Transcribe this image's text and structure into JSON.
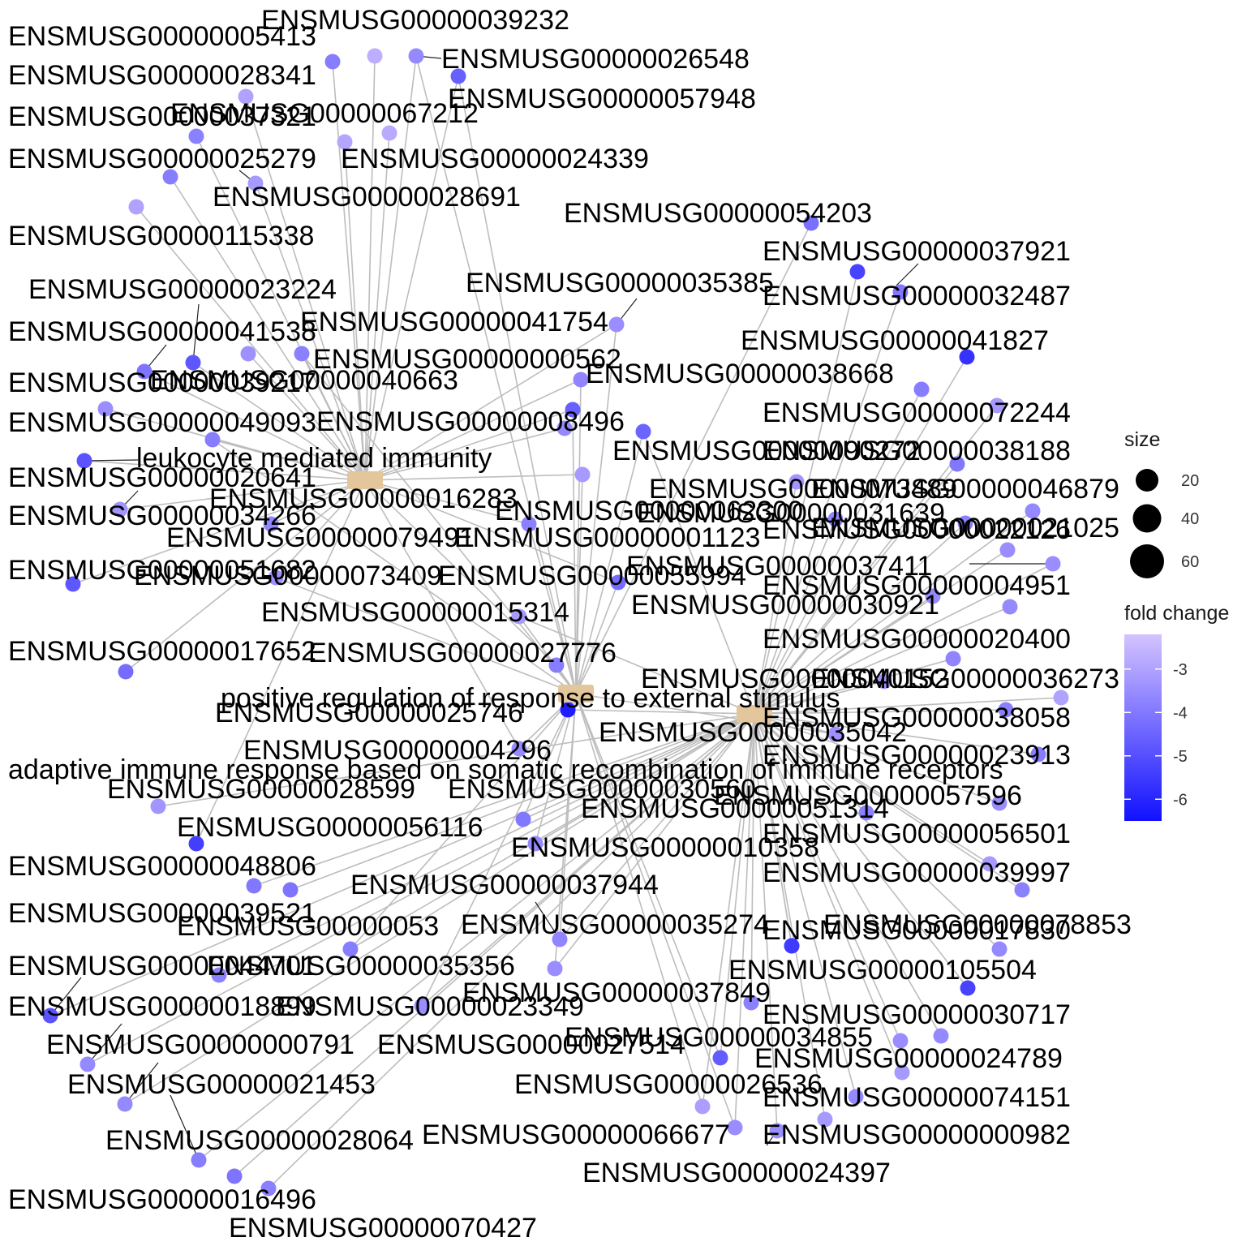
{
  "colors": {
    "edge": "#bdbdbd",
    "category_node": "#e3c69b",
    "fold_low": "#1111ff",
    "fold_high": "#d4c3ff"
  },
  "legend": {
    "size_title": "size",
    "size_entries": [
      {
        "label": "20",
        "value": 20
      },
      {
        "label": "40",
        "value": 40
      },
      {
        "label": "60",
        "value": 60
      }
    ],
    "color_title": "fold change",
    "color_ticks": [
      {
        "label": "-3",
        "value": -3
      },
      {
        "label": "-4",
        "value": -4
      },
      {
        "label": "-5",
        "value": -5
      },
      {
        "label": "-6",
        "value": -6
      }
    ],
    "color_range": [
      -6.5,
      -2.2
    ]
  },
  "categories": [
    {
      "id": "leuk",
      "label": "leukocyte mediated immunity"
    },
    {
      "id": "pos",
      "label": "positive regulation of response to external stimulus"
    },
    {
      "id": "adap",
      "label": "adaptive immune response based on somatic recombination of immune receptors"
    }
  ],
  "genes": [
    {
      "label": "ENSMUSG00000039232",
      "fc": -2.7
    },
    {
      "label": "ENSMUSG00000005413",
      "fc": -3.9
    },
    {
      "label": "ENSMUSG00000026548",
      "fc": -3.6
    },
    {
      "label": "ENSMUSG00000028341",
      "fc": -3.0
    },
    {
      "label": "ENSMUSG00000057948",
      "fc": -4.6
    },
    {
      "label": "ENSMUSG00000067212",
      "fc": -2.8
    },
    {
      "label": "ENSMUSG00000037321",
      "fc": -3.8
    },
    {
      "label": "ENSMUSG00000025279",
      "fc": -3.9
    },
    {
      "label": "ENSMUSG00000024339",
      "fc": -2.9
    },
    {
      "label": "ENSMUSG00000028691",
      "fc": -3.2
    },
    {
      "label": "ENSMUSG00000054203",
      "fc": -4.2
    },
    {
      "label": "ENSMUSG00000115338",
      "fc": -3.0
    },
    {
      "label": "ENSMUSG00000037921",
      "fc": -5.3
    },
    {
      "label": "ENSMUSG00000035385",
      "fc": -3.5
    },
    {
      "label": "ENSMUSG00000023224",
      "fc": -4.8
    },
    {
      "label": "ENSMUSG00000032487",
      "fc": -4.0
    },
    {
      "label": "ENSMUSG00000041754",
      "fc": -3.8
    },
    {
      "label": "ENSMUSG00000041827",
      "fc": -5.7
    },
    {
      "label": "ENSMUSG00000041538",
      "fc": -3.4
    },
    {
      "label": "ENSMUSG00000000562",
      "fc": -4.6
    },
    {
      "label": "ENSMUSG00000038668",
      "fc": -3.9
    },
    {
      "label": "ENSMUSG00000040663",
      "fc": -3.7
    },
    {
      "label": "ENSMUSG00000039217",
      "fc": -4.1
    },
    {
      "label": "ENSMUSG00000072244",
      "fc": -3.2
    },
    {
      "label": "ENSMUSG00000008496",
      "fc": -3.6
    },
    {
      "label": "ENSMUSG00000049093",
      "fc": -3.5
    },
    {
      "label": "ENSMUSG00000090272",
      "fc": -4.5
    },
    {
      "label": "ENSMUSG00000038188",
      "fc": -4.0
    },
    {
      "label": "ENSMUSG00000020641",
      "fc": -4.9
    },
    {
      "label": "ENSMUSG00000073489",
      "fc": -3.3
    },
    {
      "label": "ENSMUSG00000046879",
      "fc": -3.6
    },
    {
      "label": "ENSMUSG00000016283",
      "fc": -3.9
    },
    {
      "label": "ENSMUSG00000062300",
      "fc": -3.2
    },
    {
      "label": "ENSMUSG00000034266",
      "fc": -3.3
    },
    {
      "label": "ENSMUSG00000031639",
      "fc": -3.7
    },
    {
      "label": "ENSMUSG00000022126",
      "fc": -3.8
    },
    {
      "label": "ENSMUSG00000021025",
      "fc": -3.5
    },
    {
      "label": "ENSMUSG00000079491",
      "fc": -3.7
    },
    {
      "label": "ENSMUSG00000001123",
      "fc": -3.8
    },
    {
      "label": "ENSMUSG00000037411",
      "fc": -3.5
    },
    {
      "label": "ENSMUSG00000051682",
      "fc": -4.8
    },
    {
      "label": "ENSMUSG00000073409",
      "fc": -3.4
    },
    {
      "label": "ENSMUSG00000055994",
      "fc": -4.3
    },
    {
      "label": "ENSMUSG00000004951",
      "fc": -3.6
    },
    {
      "label": "ENSMUSG00000015314",
      "fc": -3.2
    },
    {
      "label": "ENSMUSG00000030921",
      "fc": -3.6
    },
    {
      "label": "ENSMUSG00000027776",
      "fc": -3.9
    },
    {
      "label": "ENSMUSG00000020400",
      "fc": -3.7
    },
    {
      "label": "ENSMUSG00000017652",
      "fc": -4.3
    },
    {
      "label": "ENSMUSG00000040152",
      "fc": -3.3
    },
    {
      "label": "ENSMUSG00000036273",
      "fc": -3.0
    },
    {
      "label": "ENSMUSG00000025746",
      "fc": -6.2
    },
    {
      "label": "ENSMUSG00000038058",
      "fc": -3.8
    },
    {
      "label": "ENSMUSG00000035042",
      "fc": -3.4
    },
    {
      "label": "ENSMUSG00000004296",
      "fc": -3.6
    },
    {
      "label": "ENSMUSG00000023913",
      "fc": -3.9
    },
    {
      "label": "ENSMUSG00000028599",
      "fc": -3.3
    },
    {
      "label": "ENSMUSG00000030560",
      "fc": -4.0
    },
    {
      "label": "ENSMUSG00000057596",
      "fc": -3.5
    },
    {
      "label": "ENSMUSG00000051314",
      "fc": -3.8
    },
    {
      "label": "ENSMUSG00000056116",
      "fc": -5.4
    },
    {
      "label": "ENSMUSG00000056501",
      "fc": -3.2
    },
    {
      "label": "ENSMUSG00000010358",
      "fc": -3.6
    },
    {
      "label": "ENSMUSG00000048806",
      "fc": -4.0
    },
    {
      "label": "ENSMUSG00000039997",
      "fc": -3.8
    },
    {
      "label": "ENSMUSG00000037944",
      "fc": -3.7
    },
    {
      "label": "ENSMUSG00000039521",
      "fc": -4.1
    },
    {
      "label": "ENSMUSG00000053",
      "fc": -3.9
    },
    {
      "label": "ENSMUSG00000035274",
      "fc": -3.8
    },
    {
      "label": "ENSMUSG00000078853",
      "fc": -5.5
    },
    {
      "label": "ENSMUSG00000017830",
      "fc": -3.6
    },
    {
      "label": "ENSMUSG00000044701",
      "fc": -3.8
    },
    {
      "label": "ENSMUSG00000035356",
      "fc": -3.5
    },
    {
      "label": "ENSMUSG00000105504",
      "fc": -5.3
    },
    {
      "label": "ENSMUSG00000037849",
      "fc": -3.8
    },
    {
      "label": "ENSMUSG00000018899",
      "fc": -4.9
    },
    {
      "label": "ENSMUSG00000023349",
      "fc": -3.5
    },
    {
      "label": "ENSMUSG00000030717",
      "fc": -3.6
    },
    {
      "label": "ENSMUSG00000000791",
      "fc": -3.6
    },
    {
      "label": "ENSMUSG00000027514",
      "fc": -4.7
    },
    {
      "label": "ENSMUSG00000034855",
      "fc": -3.5
    },
    {
      "label": "ENSMUSG00000024789",
      "fc": -3.2
    },
    {
      "label": "ENSMUSG00000021453",
      "fc": -3.6
    },
    {
      "label": "ENSMUSG00000026536",
      "fc": -3.1
    },
    {
      "label": "ENSMUSG00000074151",
      "fc": -3.6
    },
    {
      "label": "ENSMUSG00000066677",
      "fc": -3.5
    },
    {
      "label": "ENSMUSG00000000982",
      "fc": -3.2
    },
    {
      "label": "ENSMUSG00000028064",
      "fc": -3.9
    },
    {
      "label": "ENSMUSG00000024397",
      "fc": -3.5
    },
    {
      "label": "ENSMUSG00000016496",
      "fc": -4.1
    },
    {
      "label": "ENSMUSG00000070427",
      "fc": -3.8
    }
  ]
}
